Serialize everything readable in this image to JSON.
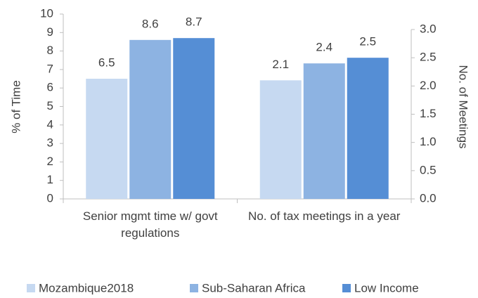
{
  "chart_data": {
    "type": "bar",
    "categories": [
      "Senior mgmt time w/ govt regulations",
      "No. of tax meetings in a year"
    ],
    "category_axis": [
      "y",
      "y2"
    ],
    "series": [
      {
        "name": "Mozambique2018",
        "color": "#c6d9f1",
        "values": [
          6.5,
          2.1
        ]
      },
      {
        "name": "Sub-Saharan Africa",
        "color": "#8db3e2",
        "values": [
          8.6,
          2.4
        ]
      },
      {
        "name": "Low Income",
        "color": "#558ed5",
        "values": [
          8.7,
          2.5
        ]
      }
    ],
    "ylabel": "% of Time",
    "y2label": "No. of Meetings",
    "ylim": [
      0,
      10
    ],
    "yticks": [
      0,
      1,
      2,
      3,
      4,
      5,
      6,
      7,
      8,
      9,
      10
    ],
    "y2lim": [
      0,
      3
    ],
    "y2ticks": [
      {
        "value": 0,
        "label": "0.0"
      },
      0.5,
      {
        "value": 1,
        "label": "1.0"
      },
      1.5,
      {
        "value": 2,
        "label": "2.0"
      },
      2.5,
      {
        "value": 3,
        "label": "3.0"
      }
    ],
    "legend": "bottom"
  }
}
